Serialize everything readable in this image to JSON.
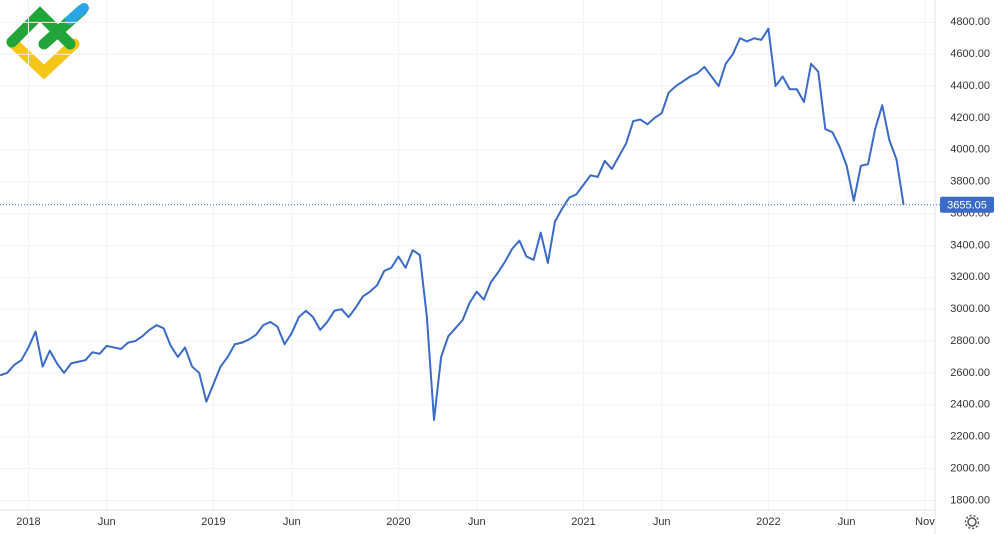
{
  "chart_data": {
    "type": "line",
    "categories": [
      null,
      null,
      null,
      null,
      "2018",
      null,
      null,
      null,
      null,
      null,
      null,
      null,
      null,
      null,
      null,
      "Jun",
      null,
      null,
      null,
      null,
      null,
      null,
      null,
      null,
      null,
      null,
      null,
      null,
      null,
      null,
      "2019",
      null,
      null,
      null,
      null,
      null,
      null,
      null,
      null,
      null,
      null,
      "Jun",
      null,
      null,
      null,
      null,
      null,
      null,
      null,
      null,
      null,
      null,
      null,
      null,
      null,
      null,
      "2020",
      null,
      null,
      null,
      null,
      null,
      null,
      null,
      null,
      null,
      null,
      "Jun",
      null,
      null,
      null,
      null,
      null,
      null,
      null,
      null,
      null,
      null,
      null,
      null,
      null,
      null,
      "2021",
      null,
      null,
      null,
      null,
      null,
      null,
      null,
      null,
      null,
      null,
      "Jun",
      null,
      null,
      null,
      null,
      null,
      null,
      null,
      null,
      null,
      null,
      null,
      null,
      null,
      null,
      "2022",
      null,
      null,
      null,
      null,
      null,
      null,
      null,
      null,
      null,
      null,
      "Jun",
      null,
      null,
      null,
      null,
      null,
      null,
      null,
      null,
      null,
      null,
      "Nov"
    ],
    "series": [
      {
        "color": "#3a6bc9",
        "values": [
          2585,
          2600,
          2650,
          2680,
          2760,
          2860,
          2640,
          2740,
          2660,
          2600,
          2660,
          2670,
          2680,
          2730,
          2720,
          2770,
          2760,
          2750,
          2790,
          2800,
          2830,
          2870,
          2900,
          2880,
          2770,
          2700,
          2760,
          2640,
          2600,
          2420,
          2530,
          2640,
          2700,
          2780,
          2790,
          2810,
          2840,
          2900,
          2920,
          2890,
          2780,
          2850,
          2950,
          2990,
          2950,
          2870,
          2920,
          2990,
          3000,
          2950,
          3010,
          3080,
          3110,
          3150,
          3240,
          3260,
          3330,
          3260,
          3370,
          3340,
          2950,
          2305,
          2700,
          2830,
          2880,
          2930,
          3040,
          3110,
          3060,
          3170,
          3230,
          3300,
          3380,
          3430,
          3330,
          3310,
          3480,
          3290,
          3550,
          3630,
          3700,
          3720,
          3780,
          3840,
          3830,
          3930,
          3880,
          3960,
          4040,
          4180,
          4190,
          4160,
          4200,
          4230,
          4360,
          4400,
          4430,
          4460,
          4480,
          4520,
          4460,
          4400,
          4540,
          4600,
          4700,
          4680,
          4700,
          4690,
          4760,
          4400,
          4460,
          4380,
          4380,
          4300,
          4540,
          4490,
          4130,
          4110,
          4020,
          3900,
          3680,
          3900,
          3910,
          4130,
          4280,
          4060,
          3940,
          3655.05,
          null,
          null,
          null
        ]
      }
    ],
    "ylim": [
      1740,
      4940
    ],
    "yticks": [
      {
        "value": 1800,
        "label": "1800.00"
      },
      {
        "value": 2000,
        "label": "2000.00"
      },
      {
        "value": 2200,
        "label": "2200.00"
      },
      {
        "value": 2400,
        "label": "2400.00"
      },
      {
        "value": 2600,
        "label": "2600.00"
      },
      {
        "value": 2800,
        "label": "2800.00"
      },
      {
        "value": 3000,
        "label": "3000.00"
      },
      {
        "value": 3200,
        "label": "3200.00"
      },
      {
        "value": 3400,
        "label": "3400.00"
      },
      {
        "value": 3600,
        "label": "3600.00"
      },
      {
        "value": 3800,
        "label": "3800.00"
      },
      {
        "value": 4000,
        "label": "4000.00"
      },
      {
        "value": 4200,
        "label": "4200.00"
      },
      {
        "value": 4400,
        "label": "4400.00"
      },
      {
        "value": 4600,
        "label": "4600.00"
      },
      {
        "value": 4800,
        "label": "4800.00"
      }
    ],
    "last_value": 3655.05,
    "grid": true
  }
}
